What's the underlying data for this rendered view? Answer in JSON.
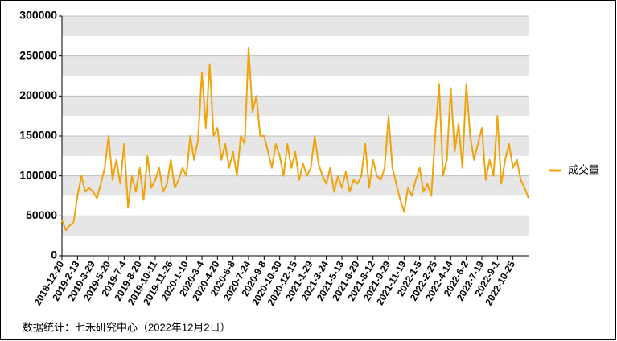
{
  "chart_data": {
    "type": "line",
    "source": "数据统计：七禾研究中心（2022年12月2日）",
    "categories": [
      "2018-12-20",
      null,
      null,
      null,
      "2019-2-13",
      null,
      null,
      null,
      "2019-3-29",
      null,
      null,
      null,
      "2019-5-20",
      null,
      null,
      null,
      "2019-7-4",
      null,
      null,
      null,
      "2019-8-20",
      null,
      null,
      null,
      "2019-10-11",
      null,
      null,
      null,
      "2019-11-26",
      null,
      null,
      null,
      "2020-1-10",
      null,
      null,
      null,
      "2020-3-4",
      null,
      null,
      null,
      "2020-4-20",
      null,
      null,
      null,
      "2020-6-8",
      null,
      null,
      null,
      "2020-7-24",
      null,
      null,
      null,
      "2020-9-8",
      null,
      null,
      null,
      "2020-10-30",
      null,
      null,
      null,
      "2020-12-15",
      null,
      null,
      null,
      "2021-1-29",
      null,
      null,
      null,
      "2021-3-24",
      null,
      null,
      null,
      "2021-5-13",
      null,
      null,
      null,
      "2021-6-29",
      null,
      null,
      null,
      "2021-8-12",
      null,
      null,
      null,
      "2021-9-29",
      null,
      null,
      null,
      "2021-11-19",
      null,
      null,
      null,
      "2022-1-5",
      null,
      null,
      null,
      "2022-2-25",
      null,
      null,
      null,
      "2022-4-14",
      null,
      null,
      null,
      "2022-6-2",
      null,
      null,
      null,
      "2022-7-19",
      null,
      null,
      null,
      "2022-9-1",
      null,
      null,
      null,
      "2022-10-25",
      null,
      null,
      null,
      null
    ],
    "series": [
      {
        "name": "成交量",
        "color": "#f0a30a",
        "values": [
          45000,
          32000,
          38000,
          42000,
          75000,
          100000,
          80000,
          85000,
          80000,
          72000,
          90000,
          110000,
          150000,
          95000,
          120000,
          90000,
          140000,
          60000,
          100000,
          80000,
          110000,
          70000,
          125000,
          85000,
          95000,
          110000,
          80000,
          90000,
          120000,
          85000,
          95000,
          110000,
          100000,
          150000,
          120000,
          145000,
          230000,
          160000,
          240000,
          150000,
          160000,
          120000,
          140000,
          110000,
          130000,
          100000,
          150000,
          140000,
          260000,
          180000,
          200000,
          150000,
          150000,
          130000,
          110000,
          140000,
          125000,
          100000,
          140000,
          110000,
          130000,
          95000,
          115000,
          100000,
          110000,
          150000,
          115000,
          100000,
          90000,
          110000,
          80000,
          100000,
          85000,
          105000,
          80000,
          95000,
          90000,
          100000,
          140000,
          85000,
          120000,
          100000,
          95000,
          110000,
          175000,
          110000,
          90000,
          70000,
          55000,
          85000,
          75000,
          95000,
          110000,
          80000,
          90000,
          75000,
          150000,
          215000,
          100000,
          120000,
          210000,
          130000,
          165000,
          110000,
          215000,
          150000,
          120000,
          140000,
          160000,
          95000,
          120000,
          100000,
          175000,
          90000,
          120000,
          140000,
          110000,
          120000,
          95000,
          85000,
          72000
        ]
      }
    ],
    "ylim": [
      0,
      300000
    ],
    "yticks": [
      0,
      50000,
      100000,
      150000,
      200000,
      250000,
      300000
    ],
    "grid": true,
    "legend": "right"
  }
}
